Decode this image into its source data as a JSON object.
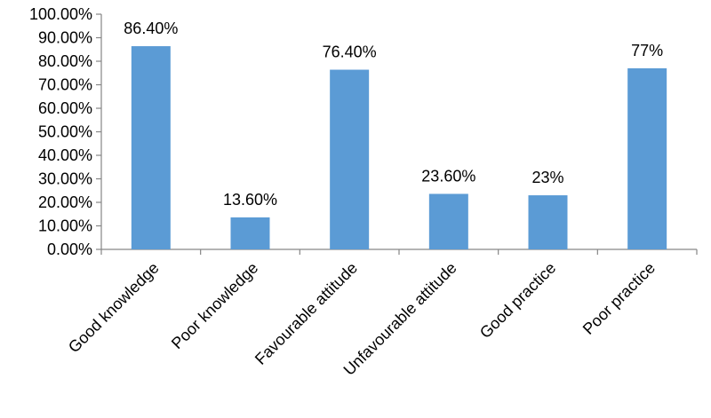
{
  "chart_data": {
    "type": "bar",
    "title": "",
    "xlabel": "",
    "ylabel": "",
    "categories": [
      "Good knowledge",
      "Poor knowledge",
      "Favourable attitude",
      "Unfavourable attitude",
      "Good practice",
      "Poor practice"
    ],
    "values": [
      86.4,
      13.6,
      76.4,
      23.6,
      23,
      77
    ],
    "data_labels": [
      "86.40%",
      "13.60%",
      "76.40%",
      "23.60%",
      "23%",
      "77%"
    ],
    "ylim": [
      0,
      100
    ],
    "yticks": [
      0,
      10,
      20,
      30,
      40,
      50,
      60,
      70,
      80,
      90,
      100
    ],
    "ytick_labels": [
      "0.00%",
      "10.00%",
      "20.00%",
      "30.00%",
      "40.00%",
      "50.00%",
      "60.00%",
      "70.00%",
      "80.00%",
      "90.00%",
      "100.00%"
    ],
    "grid": false,
    "bar_color": "#5B9BD5",
    "axis_color": "#868686"
  }
}
